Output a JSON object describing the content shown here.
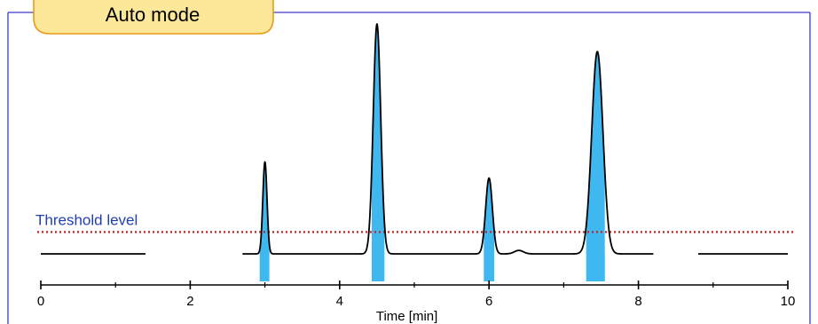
{
  "mode_label": "Auto mode",
  "colors": {
    "frame": "#3b3bc8",
    "badge_fill": "#fde89a",
    "badge_border": "#e89a1a",
    "threshold": "#cc1f1f",
    "threshold_label": "#1f3fb4",
    "peak_fill": "#3fb8f0",
    "trace": "#000000"
  },
  "chart_data": {
    "type": "line",
    "xlabel": "Time [min]",
    "ylabel": "",
    "xlim": [
      0,
      10
    ],
    "ylim": [
      0,
      100
    ],
    "x_major_ticks": [
      0,
      2,
      4,
      6,
      8,
      10
    ],
    "x_minor_ticks": [
      1,
      3,
      5,
      7,
      9
    ],
    "baseline": 0,
    "threshold": {
      "label": "Threshold level",
      "value": 9.5
    },
    "peaks": [
      {
        "center": 3.0,
        "height": 40,
        "width": 0.028,
        "fill_from": 2.93,
        "fill_to": 3.06
      },
      {
        "center": 4.5,
        "height": 100,
        "width": 0.05,
        "fill_from": 4.43,
        "fill_to": 4.6
      },
      {
        "center": 6.0,
        "height": 33,
        "width": 0.045,
        "fill_from": 5.93,
        "fill_to": 6.07
      },
      {
        "center": 6.4,
        "height": 1.5,
        "width": 0.06,
        "fill_from": null,
        "fill_to": null
      },
      {
        "center": 7.45,
        "height": 88,
        "width": 0.075,
        "fill_from": 7.3,
        "fill_to": 7.55
      }
    ],
    "trace_segments": [
      [
        0,
        1.4
      ],
      [
        2.7,
        8.2
      ],
      [
        8.8,
        10
      ]
    ],
    "grid": false,
    "legend": "none"
  }
}
